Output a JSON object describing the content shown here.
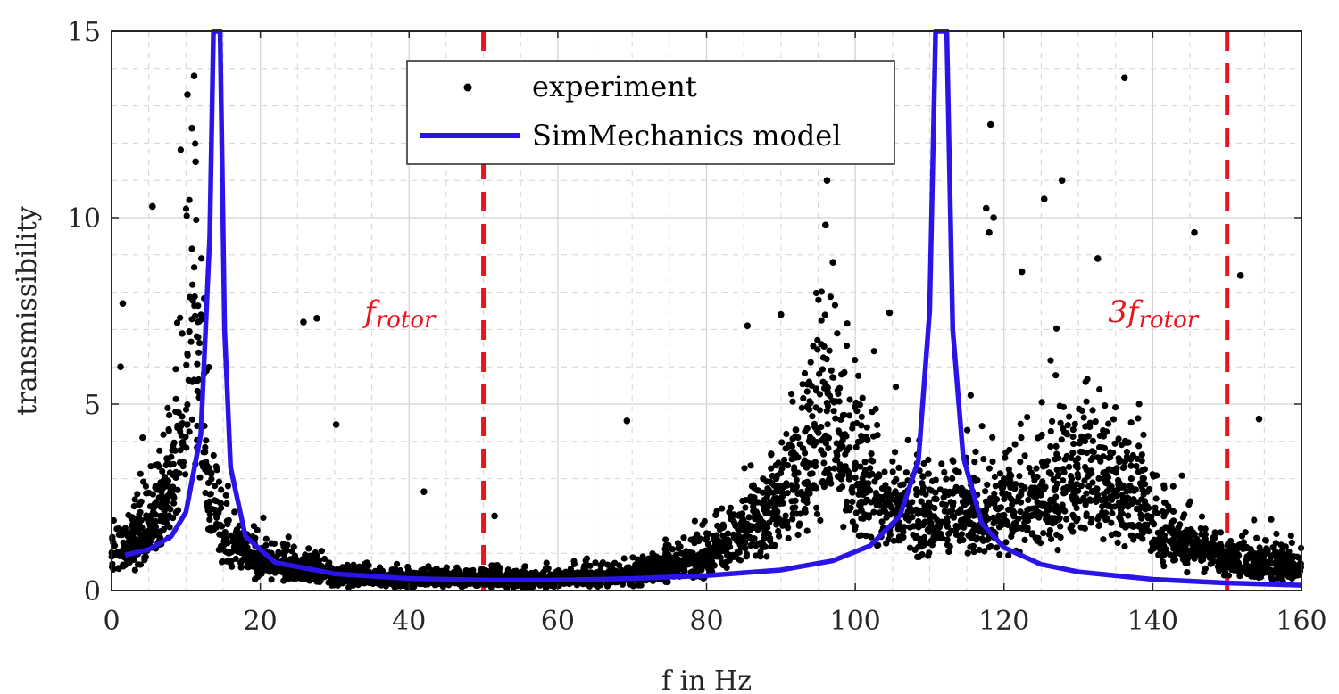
{
  "chart_data": {
    "type": "line",
    "xlabel": "f in Hz",
    "ylabel": "transmissibility",
    "xlim": [
      0,
      160
    ],
    "ylim": [
      0,
      15
    ],
    "xticks": [
      0,
      20,
      40,
      60,
      80,
      100,
      120,
      140,
      160
    ],
    "yticks": [
      0,
      5,
      10,
      15
    ],
    "grid": true,
    "minor_grid": true,
    "legend_position": "top-center",
    "colors": {
      "experiment": "#000000",
      "model": "#2a14e8",
      "reference": "#e8141e",
      "grid": "#d4d4d4"
    },
    "series": [
      {
        "name": "experiment",
        "style": "scatter",
        "notable_points": [
          {
            "x": 1.5,
            "y": 7.7
          },
          {
            "x": 1.2,
            "y": 6.0
          },
          {
            "x": 5.5,
            "y": 10.3
          },
          {
            "x": 10.2,
            "y": 13.3
          },
          {
            "x": 11.1,
            "y": 13.8
          },
          {
            "x": 10.8,
            "y": 12.4
          },
          {
            "x": 11.3,
            "y": 11.5
          },
          {
            "x": 25.8,
            "y": 7.2
          },
          {
            "x": 27.6,
            "y": 7.3
          },
          {
            "x": 30.2,
            "y": 4.45
          },
          {
            "x": 42.0,
            "y": 2.65
          },
          {
            "x": 51.5,
            "y": 2.0
          },
          {
            "x": 69.3,
            "y": 4.55
          },
          {
            "x": 85.5,
            "y": 7.1
          },
          {
            "x": 90.0,
            "y": 7.4
          },
          {
            "x": 96.2,
            "y": 11.0
          },
          {
            "x": 96.0,
            "y": 9.8
          },
          {
            "x": 97.0,
            "y": 8.8
          },
          {
            "x": 104.6,
            "y": 7.45
          },
          {
            "x": 118.2,
            "y": 12.5
          },
          {
            "x": 117.6,
            "y": 10.25
          },
          {
            "x": 118.6,
            "y": 10.0
          },
          {
            "x": 118.0,
            "y": 9.6
          },
          {
            "x": 125.4,
            "y": 10.5
          },
          {
            "x": 127.8,
            "y": 11.0
          },
          {
            "x": 122.4,
            "y": 8.55
          },
          {
            "x": 132.6,
            "y": 8.9
          },
          {
            "x": 136.2,
            "y": 13.75
          },
          {
            "x": 145.6,
            "y": 9.6
          },
          {
            "x": 151.8,
            "y": 8.45
          },
          {
            "x": 154.3,
            "y": 4.6
          }
        ],
        "trend": [
          {
            "x": 0,
            "y": 1.0
          },
          {
            "x": 5,
            "y": 1.6
          },
          {
            "x": 8,
            "y": 2.8
          },
          {
            "x": 10,
            "y": 5.5
          },
          {
            "x": 11,
            "y": 8.0
          },
          {
            "x": 12,
            "y": 5.0
          },
          {
            "x": 13,
            "y": 2.6
          },
          {
            "x": 15,
            "y": 1.5
          },
          {
            "x": 20,
            "y": 0.8
          },
          {
            "x": 30,
            "y": 0.4
          },
          {
            "x": 40,
            "y": 0.3
          },
          {
            "x": 60,
            "y": 0.3
          },
          {
            "x": 70,
            "y": 0.45
          },
          {
            "x": 80,
            "y": 0.9
          },
          {
            "x": 88,
            "y": 2.0
          },
          {
            "x": 93,
            "y": 3.3
          },
          {
            "x": 96,
            "y": 4.8
          },
          {
            "x": 99,
            "y": 3.5
          },
          {
            "x": 103,
            "y": 2.5
          },
          {
            "x": 110,
            "y": 2.0
          },
          {
            "x": 120,
            "y": 2.1
          },
          {
            "x": 128,
            "y": 2.8
          },
          {
            "x": 132,
            "y": 3.2
          },
          {
            "x": 136,
            "y": 2.6
          },
          {
            "x": 142,
            "y": 1.5
          },
          {
            "x": 150,
            "y": 0.8
          },
          {
            "x": 160,
            "y": 0.65
          }
        ]
      },
      {
        "name": "SimMechanics model",
        "style": "line",
        "resonances_hz": [
          14.0,
          111.6
        ],
        "points": [
          {
            "x": 1.8,
            "y": 0.95
          },
          {
            "x": 5,
            "y": 1.1
          },
          {
            "x": 8,
            "y": 1.45
          },
          {
            "x": 10,
            "y": 2.1
          },
          {
            "x": 12,
            "y": 4.2
          },
          {
            "x": 13.2,
            "y": 9.5
          },
          {
            "x": 13.7,
            "y": 15
          },
          {
            "x": 14.6,
            "y": 15
          },
          {
            "x": 15.2,
            "y": 7.0
          },
          {
            "x": 16,
            "y": 3.3
          },
          {
            "x": 18,
            "y": 1.45
          },
          {
            "x": 22,
            "y": 0.75
          },
          {
            "x": 30,
            "y": 0.45
          },
          {
            "x": 40,
            "y": 0.32
          },
          {
            "x": 50,
            "y": 0.28
          },
          {
            "x": 60,
            "y": 0.28
          },
          {
            "x": 70,
            "y": 0.32
          },
          {
            "x": 80,
            "y": 0.4
          },
          {
            "x": 90,
            "y": 0.55
          },
          {
            "x": 97,
            "y": 0.8
          },
          {
            "x": 102,
            "y": 1.2
          },
          {
            "x": 106,
            "y": 2.0
          },
          {
            "x": 108.5,
            "y": 3.5
          },
          {
            "x": 110,
            "y": 7.5
          },
          {
            "x": 110.8,
            "y": 15
          },
          {
            "x": 112.3,
            "y": 15
          },
          {
            "x": 113.1,
            "y": 7.0
          },
          {
            "x": 114.5,
            "y": 3.6
          },
          {
            "x": 117,
            "y": 1.8
          },
          {
            "x": 120,
            "y": 1.15
          },
          {
            "x": 125,
            "y": 0.7
          },
          {
            "x": 130,
            "y": 0.5
          },
          {
            "x": 140,
            "y": 0.3
          },
          {
            "x": 150,
            "y": 0.2
          },
          {
            "x": 160,
            "y": 0.14
          }
        ]
      }
    ],
    "reference_lines": [
      {
        "x": 50,
        "label_main": "f",
        "label_sub": "rotor"
      },
      {
        "x": 150,
        "label_main": "3f",
        "label_sub": "rotor"
      }
    ],
    "annotations": [
      {
        "text_main": "f",
        "text_sub": "rotor",
        "x": 34,
        "y": 7.2
      },
      {
        "text_main": "3f",
        "text_sub": "rotor",
        "x": 134,
        "y": 7.2
      }
    ],
    "legend": [
      {
        "label": "experiment",
        "marker": "dot"
      },
      {
        "label": "SimMechanics model",
        "marker": "line"
      }
    ]
  }
}
